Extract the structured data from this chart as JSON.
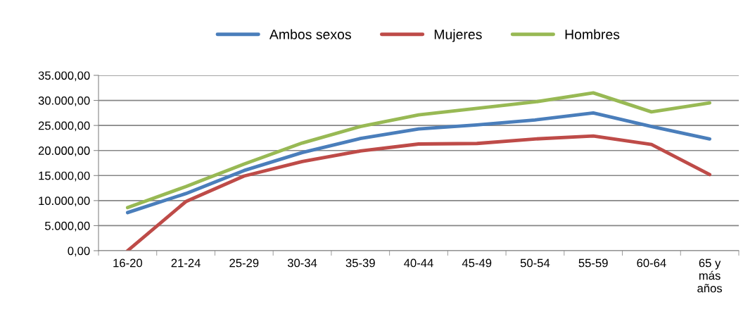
{
  "chart_data": {
    "type": "line",
    "categories": [
      "16-20",
      "21-24",
      "25-29",
      "30-34",
      "35-39",
      "40-44",
      "45-49",
      "50-54",
      "55-59",
      "60-64",
      "65 y\nmás\naños"
    ],
    "series": [
      {
        "name": "Ambos sexos",
        "color": "#4a7ebb",
        "values": [
          7600,
          11400,
          16000,
          19600,
          22400,
          24300,
          25100,
          26100,
          27500,
          24800,
          22300
        ]
      },
      {
        "name": "Mujeres",
        "color": "#be4b48",
        "values": [
          0,
          9800,
          14900,
          17800,
          19900,
          21300,
          21400,
          22300,
          22900,
          21200,
          15200
        ]
      },
      {
        "name": "Hombres",
        "color": "#98b954",
        "values": [
          8600,
          12800,
          17300,
          21500,
          24800,
          27100,
          28400,
          29700,
          31500,
          27700,
          29500
        ]
      }
    ],
    "ylim": [
      0,
      35000
    ],
    "yticks": [
      {
        "value": 0,
        "label": "0,00"
      },
      {
        "value": 5000,
        "label": "5.000,00"
      },
      {
        "value": 10000,
        "label": "10.000,00"
      },
      {
        "value": 15000,
        "label": "15.000,00"
      },
      {
        "value": 20000,
        "label": "20.000,00"
      },
      {
        "value": 25000,
        "label": "25.000,00"
      },
      {
        "value": 30000,
        "label": "30.000,00"
      },
      {
        "value": 35000,
        "label": "35.000,00"
      }
    ],
    "grid": "y",
    "legend": "top",
    "marker": "none",
    "line_style": "solid"
  }
}
